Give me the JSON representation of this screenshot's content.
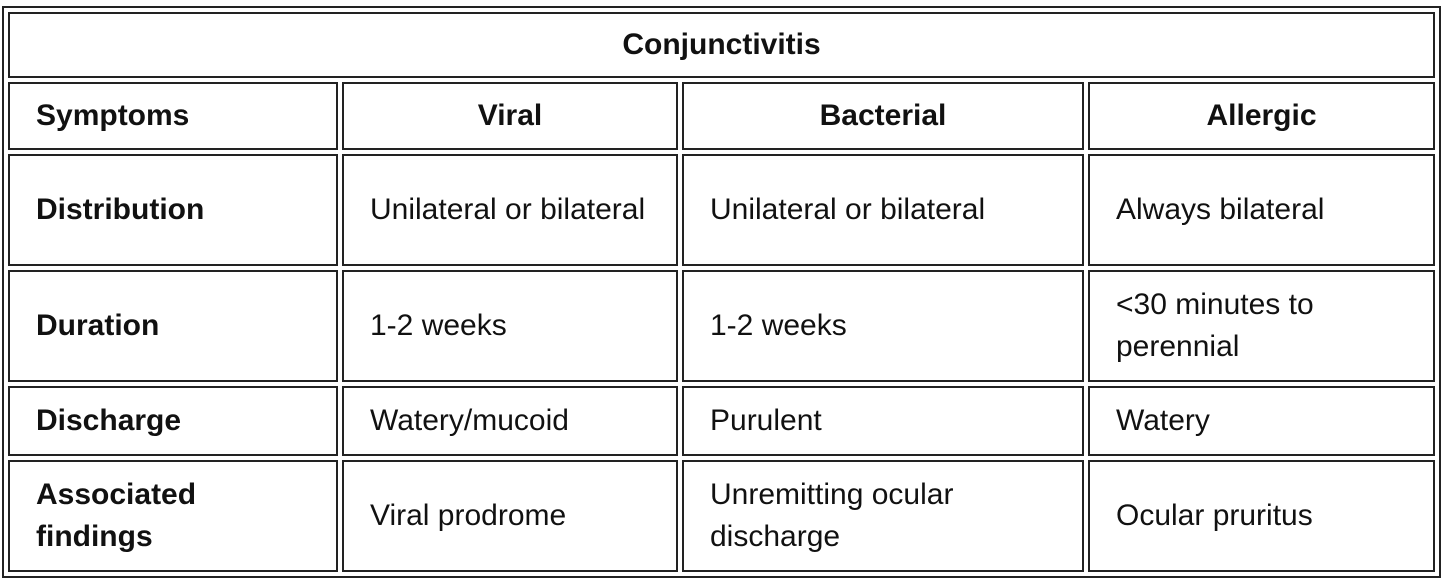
{
  "title": "Conjunctivitis",
  "headers": [
    "Symptoms",
    "Viral",
    "Bacterial",
    "Allergic"
  ],
  "rows": [
    {
      "label": "Distribution",
      "cells": [
        "Unilateral or bilateral",
        "Unilateral or bilateral",
        "Always bilateral"
      ]
    },
    {
      "label": "Duration",
      "cells": [
        "1-2 weeks",
        "1-2 weeks",
        "<30 minutes to perennial"
      ]
    },
    {
      "label": "Discharge",
      "cells": [
        "Watery/mucoid",
        "Purulent",
        "Watery"
      ]
    },
    {
      "label": "Associated findings",
      "cells": [
        "Viral prodrome",
        "Unremitting ocular discharge",
        "Ocular pruritus"
      ]
    }
  ]
}
